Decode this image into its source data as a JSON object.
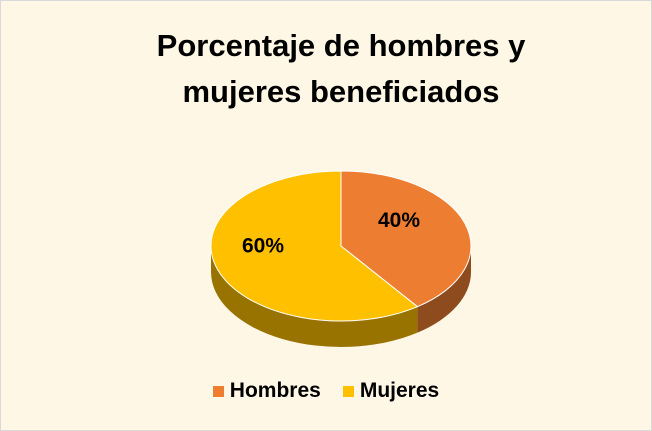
{
  "chart_data": {
    "type": "pie",
    "title": "Porcentaje de hombres y mujeres beneficiados",
    "categories": [
      "Hombres",
      "Mujeres"
    ],
    "values": [
      40,
      60
    ],
    "value_labels": [
      "40%",
      "60%"
    ],
    "colors": [
      "#ED7D31",
      "#FFC000"
    ],
    "legend": "bottom"
  }
}
